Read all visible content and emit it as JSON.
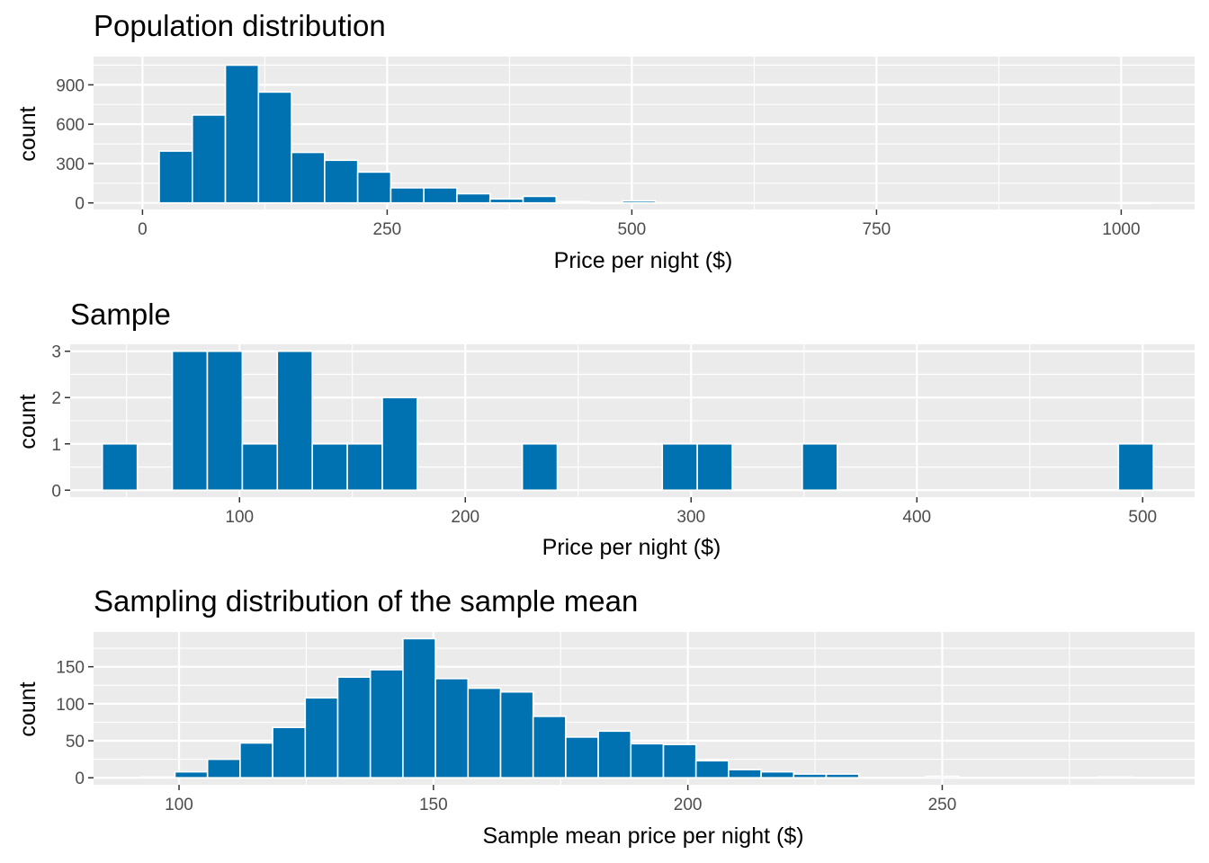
{
  "colors": {
    "bar": "#0072B2",
    "panel": "#EBEBEB",
    "grid": "#FFFFFF",
    "tick_text": "#4D4D4D"
  },
  "chart_data": [
    {
      "type": "bar",
      "title": "Population distribution",
      "xlabel": "Price per night ($)",
      "ylabel": "count",
      "xlim": [
        -50,
        1075
      ],
      "ylim": [
        -50,
        1115
      ],
      "xticks": [
        0,
        250,
        500,
        750,
        1000
      ],
      "yticks": [
        0,
        300,
        600,
        900
      ],
      "bin_width": 33.8,
      "bins": [
        {
          "center": 34.0,
          "count": 395
        },
        {
          "center": 67.8,
          "count": 670
        },
        {
          "center": 101.6,
          "count": 1050
        },
        {
          "center": 135.4,
          "count": 845
        },
        {
          "center": 169.2,
          "count": 385
        },
        {
          "center": 203.0,
          "count": 325
        },
        {
          "center": 236.8,
          "count": 235
        },
        {
          "center": 270.6,
          "count": 115
        },
        {
          "center": 304.4,
          "count": 115
        },
        {
          "center": 338.2,
          "count": 70
        },
        {
          "center": 372.0,
          "count": 30
        },
        {
          "center": 405.8,
          "count": 50
        },
        {
          "center": 439.6,
          "count": 10
        },
        {
          "center": 473.4,
          "count": 2
        },
        {
          "center": 507.2,
          "count": 15
        },
        {
          "center": 1014.0,
          "count": 1
        }
      ]
    },
    {
      "type": "bar",
      "title": "Sample",
      "xlabel": "Price per night ($)",
      "ylabel": "count",
      "xlim": [
        25,
        523
      ],
      "ylim": [
        -0.15,
        3.15
      ],
      "xticks": [
        100,
        200,
        300,
        400,
        500
      ],
      "yticks": [
        0,
        1,
        2,
        3
      ],
      "bin_width": 15.5,
      "bins": [
        {
          "center": 47.0,
          "count": 1
        },
        {
          "center": 78.0,
          "count": 3
        },
        {
          "center": 93.5,
          "count": 3
        },
        {
          "center": 109.0,
          "count": 1
        },
        {
          "center": 124.5,
          "count": 3
        },
        {
          "center": 140.0,
          "count": 1
        },
        {
          "center": 155.5,
          "count": 1
        },
        {
          "center": 171.0,
          "count": 2
        },
        {
          "center": 233.0,
          "count": 1
        },
        {
          "center": 295.0,
          "count": 1
        },
        {
          "center": 310.5,
          "count": 1
        },
        {
          "center": 357.0,
          "count": 1
        },
        {
          "center": 497.0,
          "count": 1
        }
      ]
    },
    {
      "type": "bar",
      "title": "Sampling distribution of the sample mean",
      "xlabel": "Sample mean price per night ($)",
      "ylabel": "count",
      "xlim": [
        83.2,
        299.6
      ],
      "ylim": [
        -9.5,
        197
      ],
      "xticks": [
        100,
        150,
        200,
        250
      ],
      "yticks": [
        0,
        50,
        100,
        150
      ],
      "bin_width": 6.4,
      "bins": [
        {
          "center": 96.0,
          "count": 1
        },
        {
          "center": 102.4,
          "count": 8
        },
        {
          "center": 108.8,
          "count": 25
        },
        {
          "center": 115.2,
          "count": 47
        },
        {
          "center": 121.6,
          "count": 68
        },
        {
          "center": 128.0,
          "count": 108
        },
        {
          "center": 134.4,
          "count": 136
        },
        {
          "center": 140.8,
          "count": 146
        },
        {
          "center": 147.2,
          "count": 188
        },
        {
          "center": 153.6,
          "count": 134
        },
        {
          "center": 160.0,
          "count": 121
        },
        {
          "center": 166.4,
          "count": 116
        },
        {
          "center": 172.8,
          "count": 83
        },
        {
          "center": 179.2,
          "count": 55
        },
        {
          "center": 185.6,
          "count": 63
        },
        {
          "center": 192.0,
          "count": 46
        },
        {
          "center": 198.4,
          "count": 45
        },
        {
          "center": 204.8,
          "count": 23
        },
        {
          "center": 211.2,
          "count": 11
        },
        {
          "center": 217.6,
          "count": 8
        },
        {
          "center": 224.0,
          "count": 5
        },
        {
          "center": 230.4,
          "count": 5
        },
        {
          "center": 250.0,
          "count": 2
        },
        {
          "center": 284.0,
          "count": 1
        }
      ]
    }
  ]
}
